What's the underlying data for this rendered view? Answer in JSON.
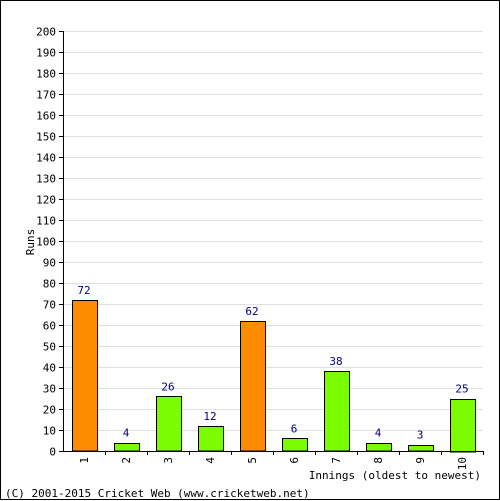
{
  "chart_data": {
    "type": "bar",
    "categories": [
      "1",
      "2",
      "3",
      "4",
      "5",
      "6",
      "7",
      "8",
      "9",
      "10"
    ],
    "values": [
      72,
      4,
      26,
      12,
      62,
      6,
      38,
      4,
      3,
      25
    ],
    "bar_colors": [
      "#ff8c00",
      "#7cfc00",
      "#7cfc00",
      "#7cfc00",
      "#ff8c00",
      "#7cfc00",
      "#7cfc00",
      "#7cfc00",
      "#7cfc00",
      "#7cfc00"
    ],
    "data_labels": [
      "72",
      "4",
      "26",
      "12",
      "62",
      "6",
      "38",
      "4",
      "3",
      "25"
    ],
    "xlabel": "Innings (oldest to newest)",
    "ylabel": "Runs",
    "ylim": [
      0,
      200
    ],
    "y_ticks": [
      "0",
      "10",
      "20",
      "30",
      "40",
      "50",
      "60",
      "70",
      "80",
      "90",
      "100",
      "110",
      "120",
      "130",
      "140",
      "150",
      "160",
      "170",
      "180",
      "190",
      "200"
    ],
    "grid": true,
    "legend": "none"
  },
  "footer": "(C) 2001-2015 Cricket Web (www.cricketweb.net)"
}
